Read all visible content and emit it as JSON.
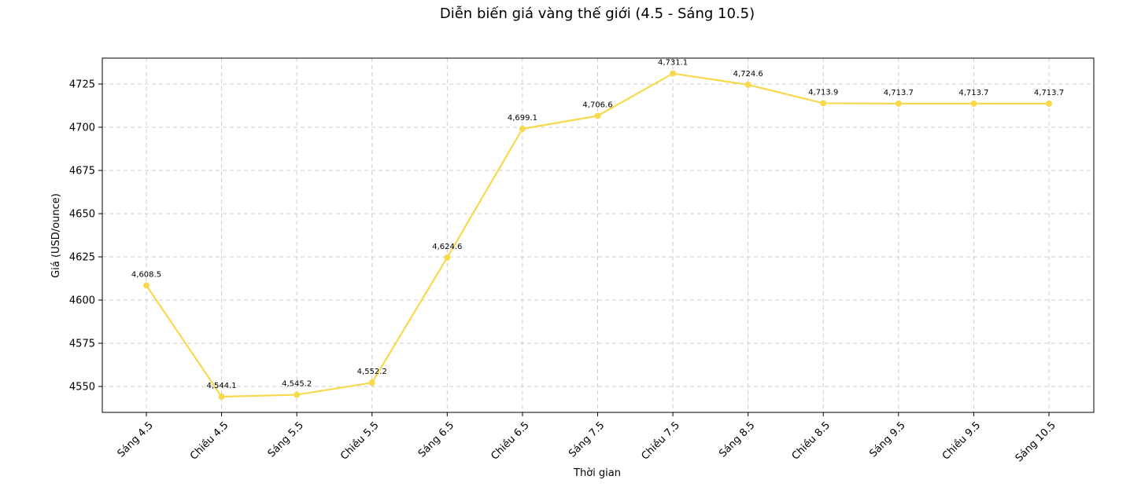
{
  "chart_data": {
    "type": "line",
    "title": "Diễn biến giá vàng thế giới (4.5 - Sáng 10.5)",
    "xlabel": "Thời gian",
    "ylabel": "Giá (USD/ounce)",
    "categories": [
      "Sáng 4.5",
      "Chiều 4.5",
      "Sáng 5.5",
      "Chiều 5.5",
      "Sáng 6.5",
      "Chiều 6.5",
      "Sáng 7.5",
      "Chiều 7.5",
      "Sáng 8.5",
      "Chiều 8.5",
      "Sáng 9.5",
      "Chiều 9.5",
      "Sáng 10.5"
    ],
    "values": [
      4608.5,
      4544.1,
      4545.2,
      4552.2,
      4624.6,
      4699.1,
      4706.6,
      4731.1,
      4724.6,
      4713.9,
      4713.7,
      4713.7,
      4713.7
    ],
    "data_labels": [
      "4,608.5",
      "4,544.1",
      "4,545.2",
      "4,552.2",
      "4,624.6",
      "4,699.1",
      "4,706.6",
      "4,731.1",
      "4,724.6",
      "4,713.9",
      "4,713.7",
      "4,713.7",
      "4,713.7"
    ],
    "y_ticks": [
      "4550",
      "4575",
      "4600",
      "4625",
      "4650",
      "4675",
      "4700",
      "4725"
    ],
    "y_tick_values": [
      4550,
      4575,
      4600,
      4625,
      4650,
      4675,
      4700,
      4725
    ],
    "ylim": [
      4535,
      4740
    ],
    "grid": true,
    "line_color": "#f7d94c"
  }
}
